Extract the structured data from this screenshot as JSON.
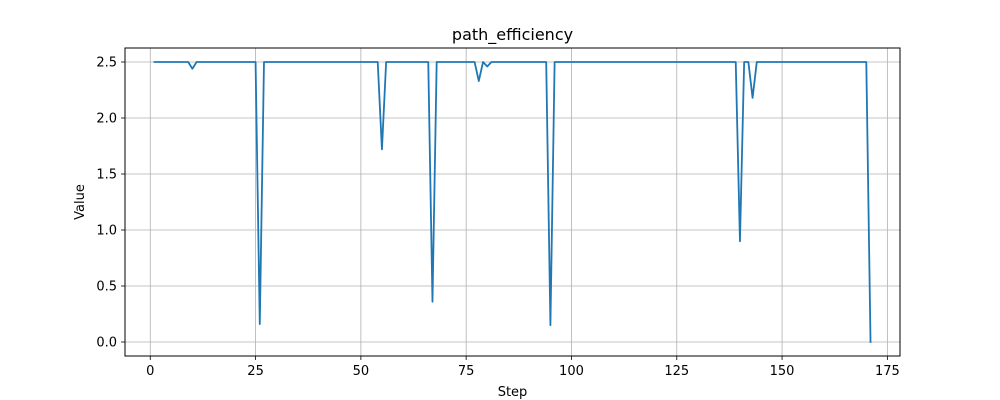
{
  "chart_data": {
    "type": "line",
    "title": "path_efficiency",
    "xlabel": "Step",
    "ylabel": "Value",
    "xlim": [
      -6,
      178
    ],
    "ylim": [
      -0.125,
      2.625
    ],
    "xticks": [
      0,
      25,
      50,
      75,
      100,
      125,
      150,
      175
    ],
    "yticks": [
      0.0,
      0.5,
      1.0,
      1.5,
      2.0,
      2.5
    ],
    "xtick_labels": [
      "0",
      "25",
      "50",
      "75",
      "100",
      "125",
      "150",
      "175"
    ],
    "ytick_labels": [
      "0.0",
      "0.5",
      "1.0",
      "1.5",
      "2.0",
      "2.5"
    ],
    "grid": true,
    "series_color": "#1f77b4",
    "series": [
      {
        "x": [
          1,
          9,
          10,
          11,
          12,
          25,
          26,
          27,
          54,
          55,
          56,
          66,
          67,
          68,
          77,
          78,
          79,
          80,
          81,
          94,
          95,
          96,
          139,
          140,
          141,
          142,
          143,
          144,
          170,
          171
        ],
        "y": [
          2.5,
          2.5,
          2.44,
          2.5,
          2.5,
          2.5,
          0.16,
          2.5,
          2.5,
          1.72,
          2.5,
          2.5,
          0.36,
          2.5,
          2.5,
          2.33,
          2.5,
          2.46,
          2.5,
          2.5,
          0.15,
          2.5,
          2.5,
          0.9,
          2.5,
          2.5,
          2.18,
          2.5,
          2.5,
          0.0
        ]
      }
    ]
  }
}
